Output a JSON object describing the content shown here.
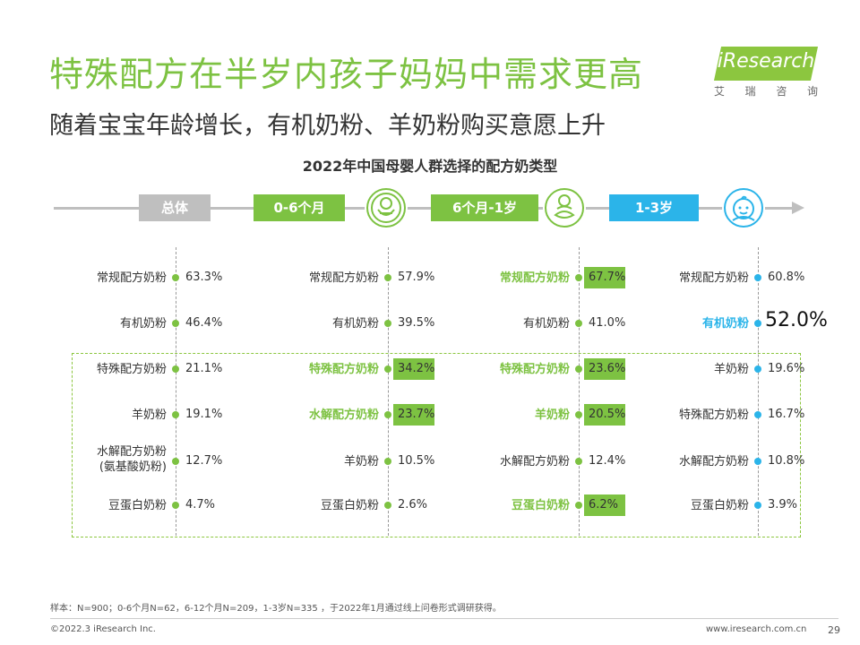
{
  "title": "特殊配方在半岁内孩子妈妈中需求更高",
  "subtitle": "随着宝宝年龄增长，有机奶粉、羊奶粉购买意愿上升",
  "logo": {
    "brand": "iResearch",
    "sub": [
      "艾",
      "瑞",
      "咨",
      "询"
    ]
  },
  "colors": {
    "green": "#7dc242",
    "gray": "#bfbfbf",
    "blue": "#2bb4e9",
    "dark": "#333333"
  },
  "chart_data": {
    "type": "table",
    "title": "2022年中国母婴人群选择的配方奶类型",
    "groups": [
      {
        "label": "总体",
        "color": "#bfbfbf",
        "icon": "",
        "items": [
          {
            "name": "常规配方奶粉",
            "value": "63.3%",
            "hl": ""
          },
          {
            "name": "有机奶粉",
            "value": "46.4%",
            "hl": ""
          },
          {
            "name": "特殊配方奶粉",
            "value": "21.1%",
            "hl": ""
          },
          {
            "name": "羊奶粉",
            "value": "19.1%",
            "hl": ""
          },
          {
            "name": "水解配方奶粉\n(氨基酸奶粉)",
            "value": "12.7%",
            "hl": ""
          },
          {
            "name": "豆蛋白奶粉",
            "value": "4.7%",
            "hl": ""
          }
        ]
      },
      {
        "label": "0-6个月",
        "color": "#7dc242",
        "icon": "swaddled-baby-icon",
        "items": [
          {
            "name": "常规配方奶粉",
            "value": "57.9%",
            "hl": ""
          },
          {
            "name": "有机奶粉",
            "value": "39.5%",
            "hl": ""
          },
          {
            "name": "特殊配方奶粉",
            "value": "34.2%",
            "hl": "green"
          },
          {
            "name": "水解配方奶粉",
            "value": "23.7%",
            "hl": "green"
          },
          {
            "name": "羊奶粉",
            "value": "10.5%",
            "hl": ""
          },
          {
            "name": "豆蛋白奶粉",
            "value": "2.6%",
            "hl": ""
          }
        ]
      },
      {
        "label": "6个月-1岁",
        "color": "#7dc242",
        "icon": "sitting-baby-icon",
        "items": [
          {
            "name": "常规配方奶粉",
            "value": "67.7%",
            "hl": "green"
          },
          {
            "name": "有机奶粉",
            "value": "41.0%",
            "hl": ""
          },
          {
            "name": "特殊配方奶粉",
            "value": "23.6%",
            "hl": "green"
          },
          {
            "name": "羊奶粉",
            "value": "20.5%",
            "hl": "green"
          },
          {
            "name": "水解配方奶粉",
            "value": "12.4%",
            "hl": ""
          },
          {
            "name": "豆蛋白奶粉",
            "value": "6.2%",
            "hl": "green"
          }
        ]
      },
      {
        "label": "1-3岁",
        "color": "#2bb4e9",
        "icon": "toddler-face-icon",
        "items": [
          {
            "name": "常规配方奶粉",
            "value": "60.8%",
            "hl": ""
          },
          {
            "name": "有机奶粉",
            "value": "52.0%",
            "hl": "blue"
          },
          {
            "name": "羊奶粉",
            "value": "19.6%",
            "hl": ""
          },
          {
            "name": "特殊配方奶粉",
            "value": "16.7%",
            "hl": ""
          },
          {
            "name": "水解配方奶粉",
            "value": "10.8%",
            "hl": ""
          },
          {
            "name": "豆蛋白奶粉",
            "value": "3.9%",
            "hl": ""
          }
        ]
      }
    ]
  },
  "footnote": "样本：N=900；0-6个月N=62，6-12个月N=209，1-3岁N=335 ，于2022年1月通过线上问卷形式调研获得。",
  "copyright": "©2022.3 iResearch Inc.",
  "website": "www.iresearch.com.cn",
  "page_number": "29"
}
